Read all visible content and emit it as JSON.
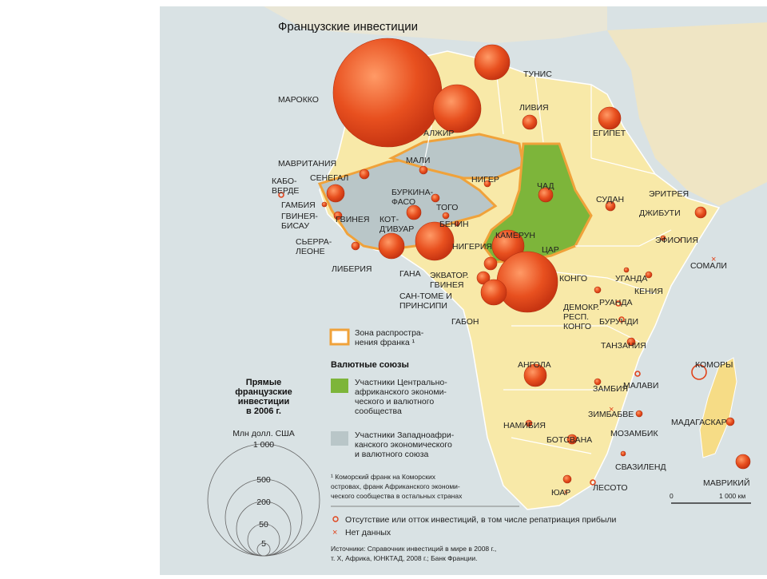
{
  "title": "Французские инвестиции",
  "countries": {
    "morocco": "МАРОККО",
    "tunisia": "ТУНИС",
    "libya": "ЛИВИЯ",
    "algeria": "АЛЖИР",
    "egypt": "ЕГИПЕТ",
    "mauritania": "МАВРИТАНИЯ",
    "mali": "МАЛИ",
    "niger": "НИГЕР",
    "chad": "ЧАД",
    "sudan": "СУДАН",
    "eritrea": "ЭРИТРЕЯ",
    "djibouti": "ДЖИБУТИ",
    "ethiopia": "ЭФИОПИЯ",
    "somalia": "СОМАЛИ",
    "cape_verde": "КАБО-\nВЕРДЕ",
    "senegal": "СЕНЕГАЛ",
    "gambia": "ГАМБИЯ",
    "guinea_bissau": "ГВИНЕЯ-\nБИСАУ",
    "guinea": "ГВИНЕЯ",
    "sierra_leone": "СЬЕРРА-\nЛЕОНЕ",
    "liberia": "ЛИБЕРИЯ",
    "cote_divoire": "КОТ-\nД'ИВУАР",
    "burkina": "БУРКИНА-\nФАСО",
    "ghana": "ГАНА",
    "togo": "ТОГО",
    "benin": "БЕНИН",
    "nigeria": "НИГЕРИЯ",
    "cameroon": "КАМЕРУН",
    "car": "ЦАР",
    "eq_guinea": "ЭКВАТОР.\nГВИНЕЯ",
    "sao_tome": "САН-ТОМЕ И\nПРИНСИПИ",
    "gabon": "ГАБОН",
    "congo": "КОНГО",
    "drc": "ДЕМОКР.\nРЕСП.\nКОНГО",
    "uganda": "УГАНДА",
    "kenya": "КЕНИЯ",
    "rwanda": "РУАНДА",
    "burundi": "БУРУНДИ",
    "tanzania": "ТАНЗАНИЯ",
    "angola": "АНГОЛА",
    "zambia": "ЗАМБИЯ",
    "malawi": "МАЛАВИ",
    "comoros": "КОМОРЫ",
    "zimbabwe": "ЗИМБАБВЕ",
    "mozambique": "МОЗАМБИК",
    "madagascar": "МАДАГАСКАР",
    "namibia": "НАМИБИЯ",
    "botswana": "БОТСВАНА",
    "swaziland": "СВАЗИЛЕНД",
    "lesotho": "ЛЕСОТО",
    "south_africa": "ЮАР",
    "mauritius": "МАВРИКИЙ"
  },
  "legend": {
    "franc_zone": "Зона распростра-\nнения франка ¹",
    "currency_unions": "Валютные союзы",
    "cemac": "Участники Центрально-\nафриканского экономи-\nческого и валютного\nсообщества",
    "uemoa": "Участники Западноафри-\nканского экономического\nи валютного союза",
    "footnote": "¹ Коморский франк на Коморских\nостровах, франк Африканского экономи-\nческого сообщества в остальных странах",
    "no_investment": "Отсутствие или отток инвестиций, в том числе репатриация прибыли",
    "no_data": "Нет данных",
    "sources": "Источники: Справочник инвестиций в мире в 2008 г.,\nт. Х, Африка, ЮНКТАД, 2008 г.; Банк Франции.",
    "scale_zero": "0",
    "scale_km": "1 000 км"
  },
  "size_legend": {
    "title": "Прямые\nфранцузские\nинвестиции\nв 2006 г.",
    "unit": "Млн долл. США",
    "values": [
      "1 000",
      "500",
      "200",
      "50",
      "5"
    ]
  },
  "colors": {
    "sea": "#d9e2e4",
    "land_franc": "#f6dc86",
    "land_other": "#f8e9a8",
    "cemac": "#7db53a",
    "uemoa": "#b9c6c8",
    "franc_border": "#f0a23a",
    "bubble": "#e0441c"
  }
}
